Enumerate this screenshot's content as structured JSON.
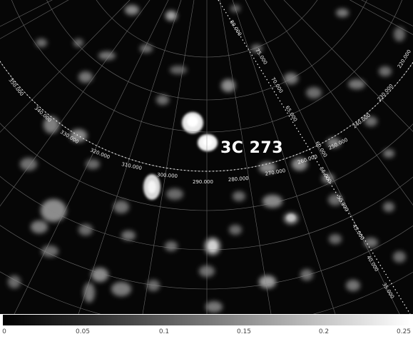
{
  "source_label": "3C 273",
  "ra_labels": [
    "350.000",
    "340.000",
    "330.000",
    "320.000",
    "310.000",
    "300.000",
    "290.000",
    "280.000",
    "270.000",
    "260.000",
    "250.000",
    "240.000",
    "230.000",
    "220.000"
  ],
  "dec_labels": [
    "80.000",
    "75.000",
    "70.000",
    "65.000",
    "60.000",
    "55.000",
    "50.000",
    "45.000",
    "40.000",
    "35.000"
  ],
  "colorbar": {
    "ticks": [
      "0",
      "0.05",
      "0.1",
      "0.15",
      "0.2",
      "0.25"
    ],
    "gradient": [
      "#000000",
      "#ffffff"
    ]
  },
  "colors": {
    "background": "#050505",
    "grid": "#9a9a9a",
    "text": "#ffffff"
  }
}
